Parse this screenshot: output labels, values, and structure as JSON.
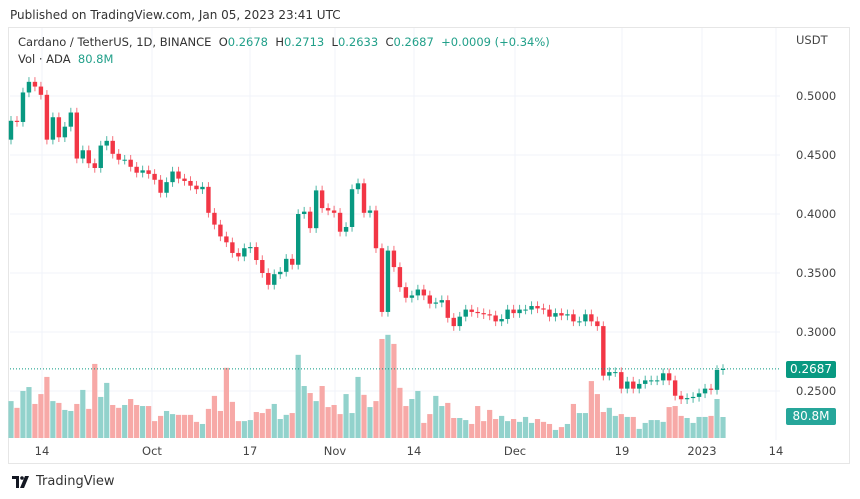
{
  "published": "Published on TradingView.com, Jan 05, 2023 23:41 UTC",
  "legend": {
    "symbol": "Cardano / TetherUS, 1D, BINANCE",
    "o_label": "O",
    "o": "0.2678",
    "h_label": "H",
    "h": "0.2713",
    "l_label": "L",
    "l": "0.2633",
    "c_label": "C",
    "c": "0.2687",
    "change": "+0.0009 (+0.34%)",
    "vol_label": "Vol · ADA",
    "vol": "80.8M"
  },
  "footer": {
    "brand": "TradingView"
  },
  "colors": {
    "up": "#089981",
    "down": "#f23645",
    "vol_up": "#92d2cc",
    "vol_down": "#f7a9a7",
    "last_price": "#089981",
    "vol_tag": "#26a69a"
  },
  "chart_data": {
    "type": "candlestick",
    "currency_label": "USDT",
    "price_ticks": [
      "0.5000",
      "0.4500",
      "0.4000",
      "0.3500",
      "0.3000",
      "0.2500"
    ],
    "price_tick_values": [
      0.5,
      0.45,
      0.4,
      0.35,
      0.3,
      0.25
    ],
    "time_ticks": [
      "14",
      "Oct",
      "17",
      "Nov",
      "14",
      "Dec",
      "19",
      "2023",
      "14"
    ],
    "last_price_label": "0.2687",
    "last_volume_label": "80.8M",
    "first_open": 0.463,
    "close": [
      0.479,
      0.478,
      0.503,
      0.512,
      0.508,
      0.501,
      0.463,
      0.482,
      0.465,
      0.474,
      0.486,
      0.447,
      0.454,
      0.443,
      0.439,
      0.458,
      0.462,
      0.451,
      0.446,
      0.446,
      0.44,
      0.435,
      0.437,
      0.434,
      0.429,
      0.418,
      0.427,
      0.436,
      0.43,
      0.428,
      0.424,
      0.421,
      0.423,
      0.401,
      0.391,
      0.381,
      0.376,
      0.367,
      0.364,
      0.371,
      0.372,
      0.361,
      0.35,
      0.34,
      0.349,
      0.351,
      0.362,
      0.357,
      0.4,
      0.402,
      0.388,
      0.42,
      0.405,
      0.403,
      0.401,
      0.385,
      0.389,
      0.421,
      0.426,
      0.401,
      0.403,
      0.371,
      0.317,
      0.369,
      0.355,
      0.338,
      0.329,
      0.331,
      0.336,
      0.331,
      0.324,
      0.325,
      0.327,
      0.312,
      0.305,
      0.313,
      0.319,
      0.317,
      0.316,
      0.315,
      0.314,
      0.309,
      0.311,
      0.319,
      0.316,
      0.319,
      0.319,
      0.322,
      0.32,
      0.319,
      0.313,
      0.316,
      0.314,
      0.315,
      0.309,
      0.309,
      0.315,
      0.309,
      0.305,
      0.263,
      0.266,
      0.266,
      0.252,
      0.258,
      0.252,
      0.256,
      0.259,
      0.259,
      0.259,
      0.265,
      0.259,
      0.246,
      0.243,
      0.244,
      0.245,
      0.248,
      0.252,
      0.251,
      0.2678,
      0.2687
    ],
    "volume_millions": [
      142,
      116,
      181,
      196,
      131,
      169,
      235,
      142,
      135,
      108,
      104,
      131,
      185,
      112,
      285,
      158,
      212,
      127,
      116,
      127,
      150,
      127,
      123,
      123,
      65,
      85,
      104,
      92,
      89,
      89,
      89,
      62,
      54,
      112,
      162,
      104,
      270,
      139,
      65,
      65,
      69,
      100,
      96,
      112,
      131,
      73,
      89,
      96,
      320,
      200,
      173,
      142,
      200,
      119,
      127,
      92,
      169,
      96,
      235,
      166,
      119,
      142,
      381,
      397,
      362,
      193,
      123,
      150,
      181,
      58,
      92,
      162,
      123,
      135,
      77,
      77,
      69,
      54,
      123,
      65,
      108,
      73,
      85,
      65,
      73,
      62,
      81,
      58,
      73,
      62,
      54,
      31,
      42,
      54,
      131,
      96,
      96,
      219,
      169,
      100,
      116,
      85,
      92,
      81,
      81,
      35,
      58,
      69,
      69,
      62,
      119,
      123,
      85,
      77,
      58,
      81,
      81,
      85,
      150,
      80.8
    ]
  }
}
